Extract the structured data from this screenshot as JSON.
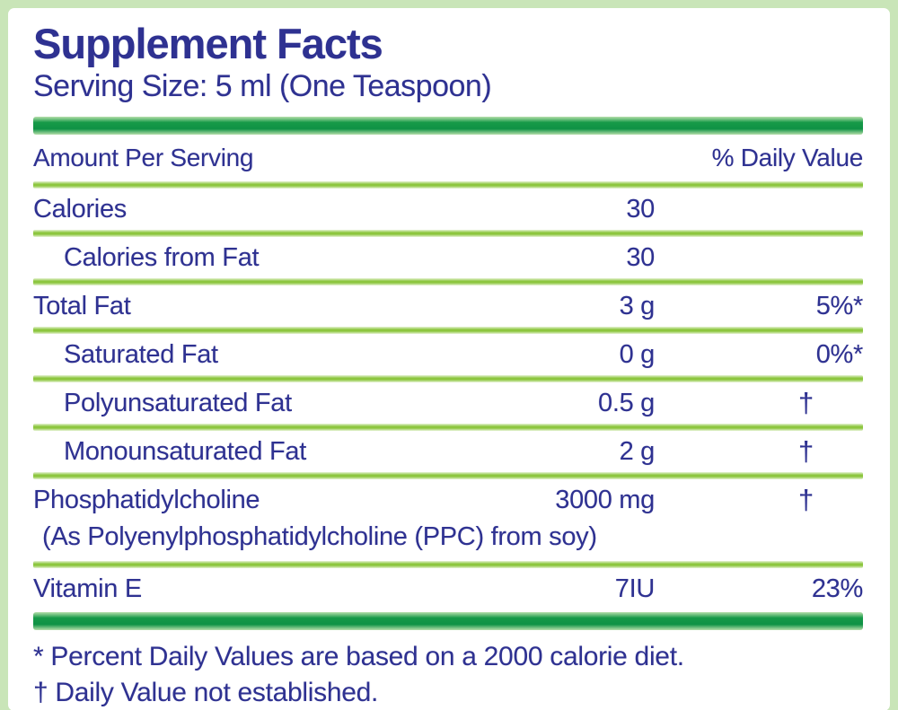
{
  "supplement_label": {
    "title": "Supplement Facts",
    "serving_size": "Serving Size: 5 ml (One Teaspoon)",
    "columns": {
      "amount_header": "Amount Per Serving",
      "dv_header": "% Daily Value"
    },
    "rows": [
      {
        "name": "Calories",
        "amount": "30",
        "dv": "",
        "indent": false
      },
      {
        "name": "Calories from Fat",
        "amount": "30",
        "dv": "",
        "indent": true
      },
      {
        "name": "Total Fat",
        "amount": "3 g",
        "dv": "5%*",
        "indent": false
      },
      {
        "name": "Saturated Fat",
        "amount": "0 g",
        "dv": "0%*",
        "indent": true
      },
      {
        "name": "Polyunsaturated Fat",
        "amount": "0.5 g",
        "dv": "†",
        "indent": true
      },
      {
        "name": "Monounsaturated Fat",
        "amount": "2 g",
        "dv": "†",
        "indent": true
      },
      {
        "name": "Phosphatidylcholine",
        "amount": "3000 mg",
        "dv": "†",
        "indent": false,
        "subtext": "(As Polyenylphosphatidylcholine (PPC) from soy)"
      },
      {
        "name": "Vitamin E",
        "amount": "7IU",
        "dv": "23%",
        "indent": false
      }
    ],
    "footnotes": [
      "* Percent Daily Values are based on a 2000 calorie diet.",
      "† Daily Value not established."
    ],
    "colors": {
      "text": "#2e3191",
      "heavy_bar": "#169a48",
      "divider": "#8dc63f",
      "frame": "#c9e5b8",
      "bottom_edge": "#a3c383"
    }
  }
}
